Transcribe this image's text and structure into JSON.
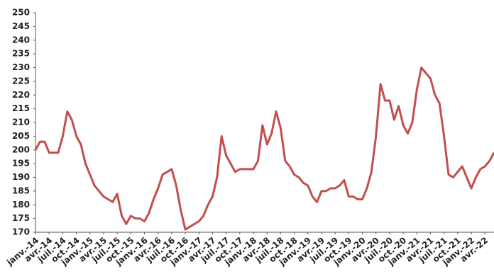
{
  "chart_data": {
    "type": "line",
    "categories": [
      "janv.-14",
      null,
      null,
      "avr.-14",
      null,
      null,
      "juil.-14",
      null,
      null,
      "oct.-14",
      null,
      null,
      "janv.-15",
      null,
      null,
      "avr.-15",
      null,
      null,
      "juil.-15",
      null,
      null,
      "oct.-15",
      null,
      null,
      "janv.-16",
      null,
      null,
      "avr.-16",
      null,
      null,
      "juil.-16",
      null,
      null,
      "oct.-16",
      null,
      null,
      "janv.-17",
      null,
      null,
      "avr.-17",
      null,
      null,
      "juil.-17",
      null,
      null,
      "oct.-17",
      null,
      null,
      "janv.-18",
      null,
      null,
      "avr.-18",
      null,
      null,
      "juil.-18",
      null,
      null,
      "oct.-18",
      null,
      null,
      "janv.-19",
      null,
      null,
      "avr.-19",
      null,
      null,
      "juil.-19",
      null,
      null,
      "oct.-19",
      null,
      null,
      "janv.-20",
      null,
      null,
      "avr.-20",
      null,
      null,
      "juil.-20",
      null,
      null,
      "oct.-20",
      null,
      null,
      "janv.-21",
      null,
      null,
      "avr.-21",
      null,
      null,
      "juil.-21",
      null,
      null,
      "oct.-21",
      null,
      null,
      "janv.-22",
      null,
      null,
      "avr.-22",
      null,
      null
    ],
    "values": [
      200,
      203,
      203,
      199,
      199,
      199,
      205,
      214,
      211,
      205,
      202,
      195,
      191,
      187,
      185,
      183,
      182,
      181,
      184,
      176,
      173,
      176,
      175,
      175,
      174,
      177,
      182,
      186,
      191,
      192,
      193,
      187,
      178,
      171,
      172,
      173,
      174,
      176,
      180,
      183,
      190,
      205,
      198,
      195,
      192,
      193,
      193,
      193,
      193,
      196,
      209,
      202,
      206,
      214,
      208,
      196,
      194,
      191,
      190,
      188,
      187,
      183,
      181,
      185,
      185,
      186,
      186,
      187,
      189,
      183,
      183,
      182,
      182,
      186,
      192,
      205,
      224,
      218,
      218,
      211,
      216,
      209,
      206,
      210,
      222,
      230,
      228,
      226,
      220,
      217,
      205,
      191,
      190,
      192,
      194,
      190,
      186,
      190,
      193,
      194,
      196,
      199
    ],
    "color": "#c0504d",
    "ylim": [
      170,
      250
    ],
    "yticks": [
      170,
      175,
      180,
      185,
      190,
      195,
      200,
      205,
      210,
      215,
      220,
      225,
      230,
      235,
      240,
      245,
      250
    ]
  }
}
